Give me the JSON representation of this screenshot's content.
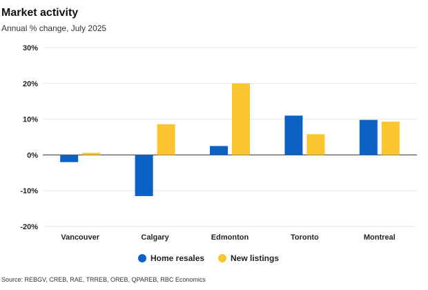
{
  "chart_data": {
    "type": "bar",
    "title": "Market activity",
    "subtitle": "Annual % change, July 2025",
    "categories": [
      "Vancouver",
      "Calgary",
      "Edmonton",
      "Toronto",
      "Montreal"
    ],
    "series": [
      {
        "name": "Home resales",
        "values": [
          -2,
          -11.5,
          2.5,
          11,
          9.8
        ],
        "color": "#0b62c4"
      },
      {
        "name": "New listings",
        "values": [
          0.6,
          8.6,
          20,
          5.8,
          9.3
        ],
        "color": "#fbc52f"
      }
    ],
    "yticks": [
      -20,
      -10,
      0,
      10,
      20,
      30
    ],
    "ytick_labels": [
      "-20%",
      "-10%",
      "0%",
      "10%",
      "20%",
      "30%"
    ],
    "ylim": [
      -20,
      30
    ],
    "xlabel": "",
    "ylabel": "",
    "grid": true,
    "legend": "bottom-center",
    "source": "Source: REBGV, CREB, RAE, TRREB, OREB, QPAREB, RBC Economics"
  }
}
